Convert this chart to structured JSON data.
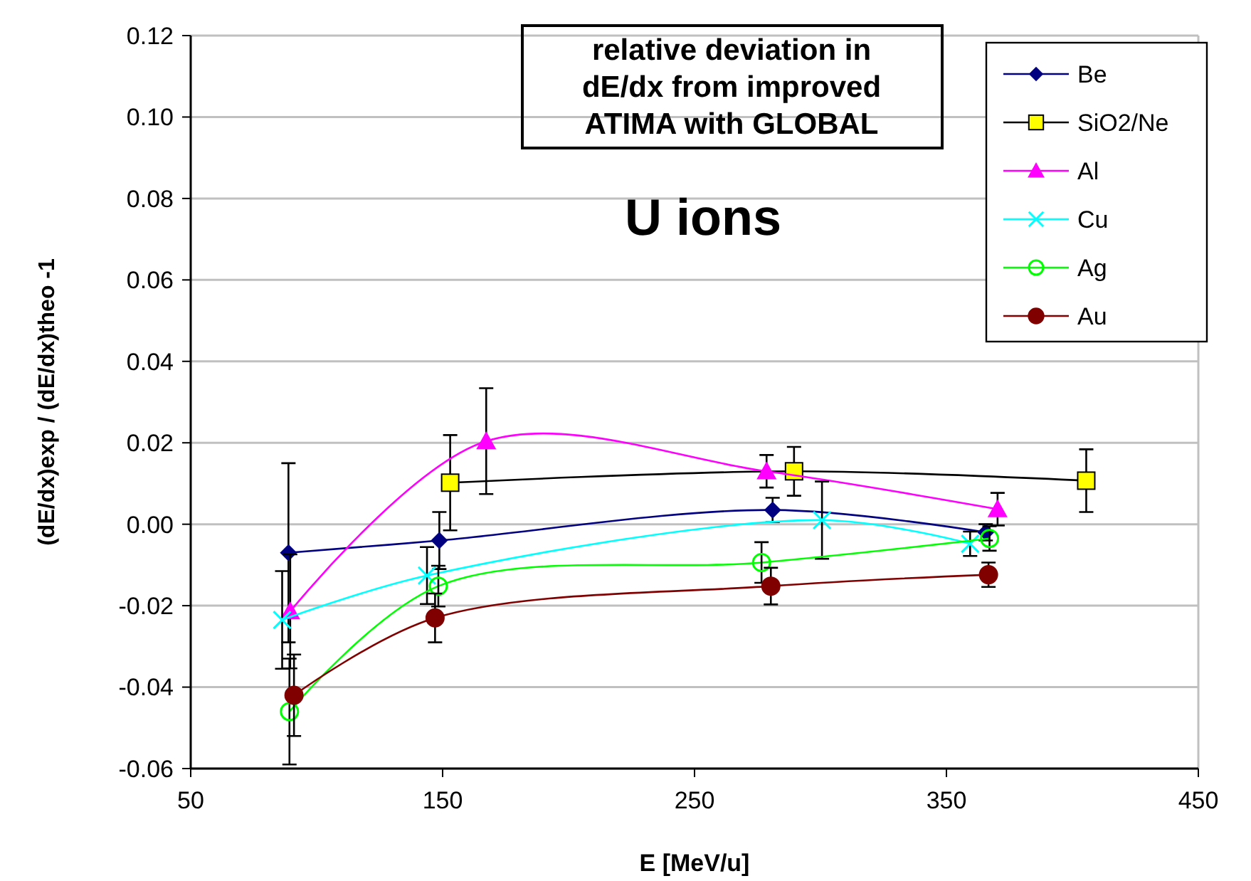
{
  "chart_data": {
    "type": "line",
    "title": "relative deviation in\ndE/dx from improved\nATIMA with GLOBAL",
    "subtitle": "U ions",
    "xlabel": "E [MeV/u]",
    "ylabel": "(dE/dx)exp / (dE/dx)theo -1",
    "xlim": [
      50,
      450
    ],
    "xticks": [
      50,
      150,
      250,
      350,
      450
    ],
    "ylim": [
      -0.06,
      0.12
    ],
    "yticks": [
      {
        "value": -0.06,
        "label": "-0.06"
      },
      {
        "value": -0.04,
        "label": "-0.04"
      },
      {
        "value": -0.02,
        "label": "-0.02"
      },
      {
        "value": 0,
        "label": "0.00"
      },
      {
        "value": 0.02,
        "label": "0.02"
      },
      {
        "value": 0.04,
        "label": "0.04"
      },
      {
        "value": 0.06,
        "label": "0.06"
      },
      {
        "value": 0.08,
        "label": "0.08"
      },
      {
        "value": 0.1,
        "label": "0.10"
      },
      {
        "value": 0.12,
        "label": "0.12"
      }
    ],
    "grid": "y",
    "legend": "top right",
    "line_style": "solid",
    "series": [
      {
        "name": "Be",
        "color": "#000080",
        "marker": "diamond",
        "x": [
          88.8,
          148.7,
          281,
          365.6
        ],
        "values": [
          -0.007,
          -0.004,
          0.0035,
          -0.002
        ],
        "errors": [
          0.022,
          0.007,
          0.003,
          0.002
        ]
      },
      {
        "name": "SiO2/Ne",
        "color": "#ffff00",
        "marker": "square",
        "x": [
          153,
          289.5,
          405.5
        ],
        "values": [
          0.0102,
          0.013,
          0.0107
        ],
        "errors": [
          0.0117,
          0.006,
          0.0077
        ]
      },
      {
        "name": "Al",
        "color": "#ff00ff",
        "marker": "triangle",
        "x": [
          89.5,
          167.3,
          278.6,
          370.3
        ],
        "values": [
          -0.0214,
          0.0204,
          0.013,
          0.0037
        ],
        "errors": [
          0.014,
          0.013,
          0.004,
          0.004
        ]
      },
      {
        "name": "Cu",
        "color": "#00ffff",
        "marker": "cross",
        "x": [
          86.3,
          143.8,
          300.6,
          359.4
        ],
        "values": [
          -0.0235,
          -0.0126,
          0.001,
          -0.0048
        ],
        "errors": [
          0.012,
          0.007,
          0.0095,
          0.003
        ]
      },
      {
        "name": "Ag",
        "color": "#00ff00",
        "marker": "circle",
        "x": [
          89.2,
          148.3,
          276.6,
          367.1
        ],
        "values": [
          -0.046,
          -0.0152,
          -0.0094,
          -0.0035
        ],
        "errors": [
          0.013,
          0.005,
          0.005,
          0.003
        ]
      },
      {
        "name": "Au",
        "color": "#800000",
        "marker": "circle",
        "x": [
          91,
          147,
          280.3,
          366.7
        ],
        "values": [
          -0.042,
          -0.023,
          -0.0152,
          -0.0124
        ],
        "errors": [
          0.01,
          0.006,
          0.0045,
          0.003
        ]
      }
    ]
  }
}
